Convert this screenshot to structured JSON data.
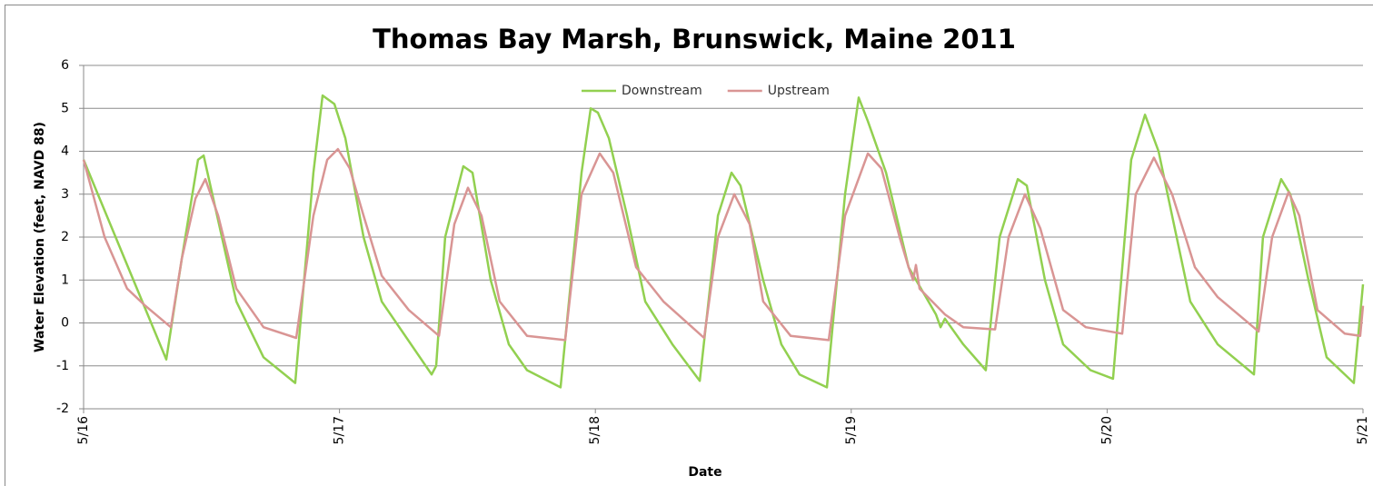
{
  "chart_data": {
    "type": "line",
    "title": "Thomas Bay Marsh, Brunswick, Maine 2011",
    "x_label": "Date",
    "y_label": "Water Elevation (feet, NAVD 88)",
    "xlim": [
      0,
      5
    ],
    "xticks": [
      {
        "value": 0,
        "label": "5/16"
      },
      {
        "value": 1,
        "label": "5/17"
      },
      {
        "value": 2,
        "label": "5/18"
      },
      {
        "value": 3,
        "label": "5/19"
      },
      {
        "value": 4,
        "label": "5/20"
      },
      {
        "value": 5,
        "label": "5/21"
      }
    ],
    "ylim": [
      -2,
      6
    ],
    "yticks": [
      -2,
      -1,
      0,
      1,
      2,
      3,
      4,
      5,
      6
    ],
    "grid": true,
    "legend": "top",
    "series": [
      {
        "name": "Downstream",
        "color": "#92d050",
        "x": [
          0,
          0.323,
          0.384,
          0.447,
          0.469,
          0.597,
          0.703,
          0.827,
          0.898,
          0.934,
          0.98,
          1.023,
          1.094,
          1.165,
          1.36,
          1.378,
          1.413,
          1.484,
          1.52,
          1.591,
          1.662,
          1.733,
          1.864,
          1.946,
          1.982,
          2.01,
          2.053,
          2.124,
          2.195,
          2.301,
          2.408,
          2.479,
          2.532,
          2.567,
          2.656,
          2.727,
          2.798,
          2.905,
          2.976,
          3.029,
          3.065,
          3.136,
          3.224,
          3.331,
          3.349,
          3.366,
          3.438,
          3.526,
          3.58,
          3.651,
          3.686,
          3.757,
          3.828,
          3.935,
          4.023,
          4.094,
          4.148,
          4.201,
          4.254,
          4.325,
          4.432,
          4.574,
          4.609,
          4.68,
          4.716,
          4.787,
          4.858,
          4.964,
          5
        ],
        "values": [
          3.8,
          -0.85,
          1.5,
          3.8,
          3.9,
          0.5,
          -0.8,
          -1.4,
          3.5,
          5.3,
          5.1,
          4.3,
          2,
          0.5,
          -1.2,
          -1.0,
          2,
          3.65,
          3.5,
          1.0,
          -0.5,
          -1.1,
          -1.5,
          3.5,
          5.0,
          4.9,
          4.3,
          2.5,
          0.5,
          -0.5,
          -1.35,
          2.5,
          3.5,
          3.2,
          1.0,
          -0.5,
          -1.2,
          -1.5,
          3,
          5.25,
          4.7,
          3.5,
          1.3,
          0.2,
          -0.1,
          0.1,
          -0.5,
          -1.1,
          2,
          3.35,
          3.2,
          1.0,
          -0.5,
          -1.1,
          -1.3,
          3.8,
          4.85,
          4.0,
          2.5,
          0.5,
          -0.5,
          -1.2,
          2,
          3.35,
          3.0,
          1.0,
          -0.8,
          -1.4,
          0.9
        ]
      },
      {
        "name": "Upstream",
        "color": "#d99594",
        "x": [
          0,
          0.082,
          0.17,
          0.241,
          0.341,
          0.384,
          0.437,
          0.476,
          0.526,
          0.597,
          0.703,
          0.831,
          0.898,
          0.952,
          0.994,
          1.04,
          1.094,
          1.165,
          1.271,
          1.389,
          1.449,
          1.502,
          1.555,
          1.626,
          1.733,
          1.882,
          1.946,
          2.017,
          2.07,
          2.159,
          2.266,
          2.425,
          2.479,
          2.543,
          2.603,
          2.656,
          2.763,
          2.912,
          2.976,
          3.065,
          3.118,
          3.189,
          3.224,
          3.242,
          3.253,
          3.267,
          3.366,
          3.438,
          3.562,
          3.615,
          3.679,
          3.739,
          3.828,
          3.917,
          4.059,
          4.112,
          4.183,
          4.254,
          4.343,
          4.432,
          4.592,
          4.645,
          4.709,
          4.751,
          4.822,
          4.929,
          4.989,
          5
        ],
        "values": [
          3.8,
          2.0,
          0.8,
          0.4,
          -0.1,
          1.5,
          2.9,
          3.35,
          2.5,
          0.8,
          -0.1,
          -0.35,
          2.5,
          3.8,
          4.05,
          3.6,
          2.5,
          1.1,
          0.3,
          -0.3,
          2.3,
          3.15,
          2.5,
          0.5,
          -0.3,
          -0.4,
          3,
          3.95,
          3.5,
          1.3,
          0.5,
          -0.35,
          2,
          3.0,
          2.3,
          0.5,
          -0.3,
          -0.4,
          2.5,
          3.95,
          3.6,
          2.0,
          1.3,
          1.0,
          1.35,
          0.8,
          0.2,
          -0.1,
          -0.15,
          2.0,
          3.0,
          2.2,
          0.3,
          -0.1,
          -0.25,
          3.0,
          3.85,
          3.0,
          1.3,
          0.6,
          -0.2,
          2,
          3.05,
          2.5,
          0.3,
          -0.25,
          -0.3,
          0.4
        ]
      }
    ]
  }
}
